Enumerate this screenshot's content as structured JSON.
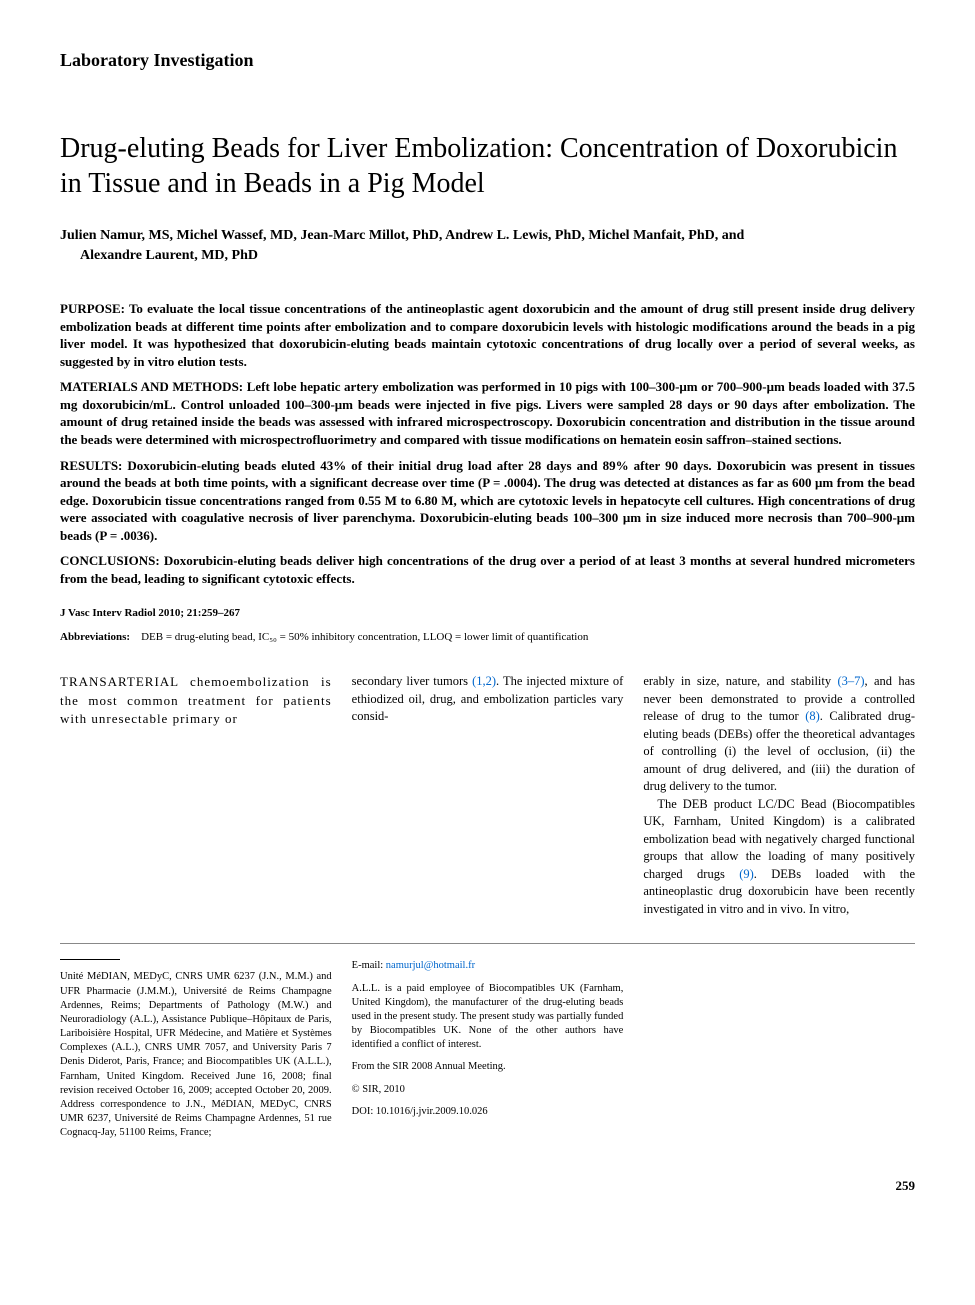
{
  "section_label": "Laboratory Investigation",
  "title": "Drug-eluting Beads for Liver Embolization: Concentration of Doxorubicin in Tissue and in Beads in a Pig Model",
  "authors_line1": "Julien Namur, MS, Michel Wassef, MD, Jean-Marc Millot, PhD, Andrew L. Lewis, PhD, Michel Manfait, PhD, and",
  "authors_line2": "Alexandre Laurent, MD, PhD",
  "abstract": {
    "purpose": {
      "label": "PURPOSE:",
      "text": "To evaluate the local tissue concentrations of the antineoplastic agent doxorubicin and the amount of drug still present inside drug delivery embolization beads at different time points after embolization and to compare doxorubicin levels with histologic modifications around the beads in a pig liver model. It was hypothesized that doxorubicin-eluting beads maintain cytotoxic concentrations of drug locally over a period of several weeks, as suggested by in vitro elution tests."
    },
    "methods": {
      "label": "MATERIALS AND METHODS:",
      "text": "Left lobe hepatic artery embolization was performed in 10 pigs with 100–300-μm or 700–900-μm beads loaded with 37.5 mg doxorubicin/mL. Control unloaded 100–300-μm beads were injected in five pigs. Livers were sampled 28 days or 90 days after embolization. The amount of drug retained inside the beads was assessed with infrared microspectroscopy. Doxorubicin concentration and distribution in the tissue around the beads were determined with microspectrofluorimetry and compared with tissue modifications on hematein eosin saffron–stained sections."
    },
    "results": {
      "label": "RESULTS:",
      "text": "Doxorubicin-eluting beads eluted 43% of their initial drug load after 28 days and 89% after 90 days. Doxorubicin was present in tissues around the beads at both time points, with a significant decrease over time (P = .0004). The drug was detected at distances as far as 600 μm from the bead edge. Doxorubicin tissue concentrations ranged from 0.55 M to 6.80 M, which are cytotoxic levels in hepatocyte cell cultures. High concentrations of drug were associated with coagulative necrosis of liver parenchyma. Doxorubicin-eluting beads 100–300 μm in size induced more necrosis than 700–900-μm beads (P = .0036)."
    },
    "conclusions": {
      "label": "CONCLUSIONS:",
      "text": "Doxorubicin-eluting beads deliver high concentrations of the drug over a period of at least 3 months at several hundred micrometers from the bead, leading to significant cytotoxic effects."
    }
  },
  "citation": "J Vasc Interv Radiol 2010; 21:259–267",
  "abbreviations": {
    "label": "Abbreviations:",
    "text": "DEB = drug-eluting bead, IC₅₀ = 50% inhibitory concentration, LLOQ = lower limit of quantification"
  },
  "body": {
    "col1": "TRANSARTERIAL chemoembolization is the most common treatment for patients with unresectable primary or",
    "col2_a": "secondary liver tumors ",
    "col2_ref1": "(1,2)",
    "col2_b": ". The injected mixture of ethiodized oil, drug, and embolization particles vary consid-",
    "col3_a": "erably in size, nature, and stability ",
    "col3_ref1": "(3–7)",
    "col3_b": ", and has never been demonstrated to provide a controlled release of drug to the tumor ",
    "col3_ref2": "(8)",
    "col3_c": ". Calibrated drug-eluting beads (DEBs) offer the theoretical advantages of controlling (i) the level of occlusion, (ii) the amount of drug delivered, and (iii) the duration of drug delivery to the tumor.",
    "col3_p2_a": "The DEB product LC/DC Bead (Biocompatibles UK, Farnham, United Kingdom) is a calibrated embolization bead with negatively charged functional groups that allow the loading of many positively charged drugs ",
    "col3_p2_ref": "(9)",
    "col3_p2_b": ". DEBs loaded with the antineoplastic drug doxorubicin have been recently investigated in vitro and in vivo. In vitro,"
  },
  "footer": {
    "col1": "Unité MéDIAN, MEDyC, CNRS UMR 6237 (J.N., M.M.) and UFR Pharmacie (J.M.M.), Université de Reims Champagne Ardennes, Reims; Departments of Pathology (M.W.) and Neuroradiology (A.L.), Assistance Publique–Hôpitaux de Paris, Lariboisière Hospital, UFR Médecine, and Matière et Systèmes Complexes (A.L.), CNRS UMR 7057, and University Paris 7 Denis Diderot, Paris, France; and Biocompatibles UK (A.L.L.), Farnham, United Kingdom. Received June 16, 2008; final revision received October 16, 2009; accepted October 20, 2009. Address correspondence to J.N., MéDIAN, MEDyC, CNRS UMR 6237, Université de Reims Champagne Ardennes, 51 rue Cognacq-Jay, 51100 Reims, France;",
    "col2_email_label": "E-mail:",
    "col2_email": "namurjul@hotmail.fr",
    "col2_disclosure": "A.L.L. is a paid employee of Biocompatibles UK (Farnham, United Kingdom), the manufacturer of the drug-eluting beads used in the present study. The present study was partially funded by Biocompatibles UK. None of the other authors have identified a conflict of interest.",
    "col2_meeting": "From the SIR 2008 Annual Meeting.",
    "col2_copyright": "© SIR, 2010",
    "col2_doi": "DOI: 10.1016/j.jvir.2009.10.026"
  },
  "page_number": "259"
}
